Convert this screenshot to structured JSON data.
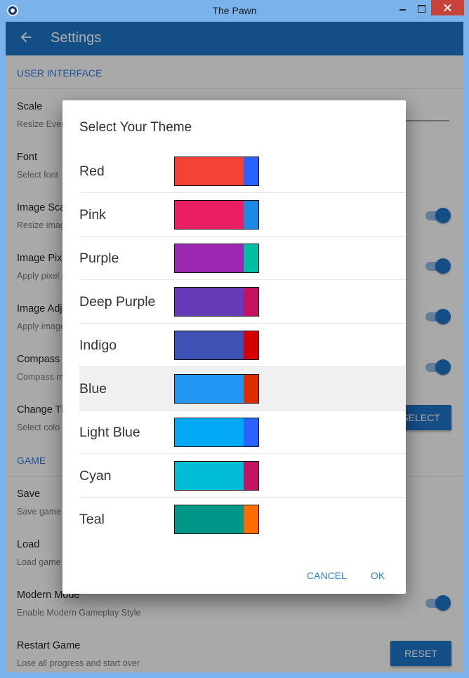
{
  "window": {
    "title": "The Pawn"
  },
  "appbar": {
    "title": "Settings"
  },
  "sections": {
    "user_interface": "USER INTERFACE",
    "game": "GAME"
  },
  "rows": {
    "scale": {
      "title": "Scale",
      "subtitle": "Resize Ever"
    },
    "font": {
      "title": "Font",
      "subtitle": "Select font"
    },
    "image_scale": {
      "title": "Image Sca",
      "subtitle": "Resize imag"
    },
    "image_pixel": {
      "title": "Image Pix",
      "subtitle": "Apply pixel s"
    },
    "image_adjust": {
      "title": "Image Adj",
      "subtitle": "Apply image"
    },
    "compass": {
      "title": "Compass",
      "subtitle": "Compass m"
    },
    "change_theme": {
      "title": "Change Th",
      "subtitle": "Select colo",
      "button": "SELECT"
    },
    "save": {
      "title": "Save",
      "subtitle": "Save game"
    },
    "load": {
      "title": "Load",
      "subtitle": "Load game"
    },
    "modern_mode": {
      "title": "Modern Mode",
      "subtitle": "Enable Modern Gameplay Style"
    },
    "restart": {
      "title": "Restart Game",
      "subtitle": "Lose all progress and start over",
      "button": "RESET"
    }
  },
  "switches": {
    "image_scale": true,
    "image_pixel": true,
    "image_adjust": true,
    "compass": true,
    "modern_mode": true
  },
  "dialog": {
    "title": "Select Your Theme",
    "cancel": "CANCEL",
    "ok": "OK",
    "selected": "Blue",
    "themes": [
      {
        "name": "Red",
        "primary": "#f44336",
        "accent": "#2962ff"
      },
      {
        "name": "Pink",
        "primary": "#e91e63",
        "accent": "#1e88e5"
      },
      {
        "name": "Purple",
        "primary": "#9c27b0",
        "accent": "#00bfa5"
      },
      {
        "name": "Deep Purple",
        "primary": "#673ab7",
        "accent": "#c51162"
      },
      {
        "name": "Indigo",
        "primary": "#3f51b5",
        "accent": "#d50000"
      },
      {
        "name": "Blue",
        "primary": "#2196f3",
        "accent": "#dd2c00"
      },
      {
        "name": "Light Blue",
        "primary": "#03a9f4",
        "accent": "#2962ff"
      },
      {
        "name": "Cyan",
        "primary": "#00bcd4",
        "accent": "#c51162"
      },
      {
        "name": "Teal",
        "primary": "#009688",
        "accent": "#ff6d00"
      }
    ]
  },
  "colors": {
    "primary": "#1e74c8",
    "accent_text": "#2f7ed8",
    "window_frame": "#7ab3ec",
    "close_button": "#c7433a"
  },
  "icons": {
    "back": "arrow-left-icon",
    "app": "pawn-app-icon"
  }
}
